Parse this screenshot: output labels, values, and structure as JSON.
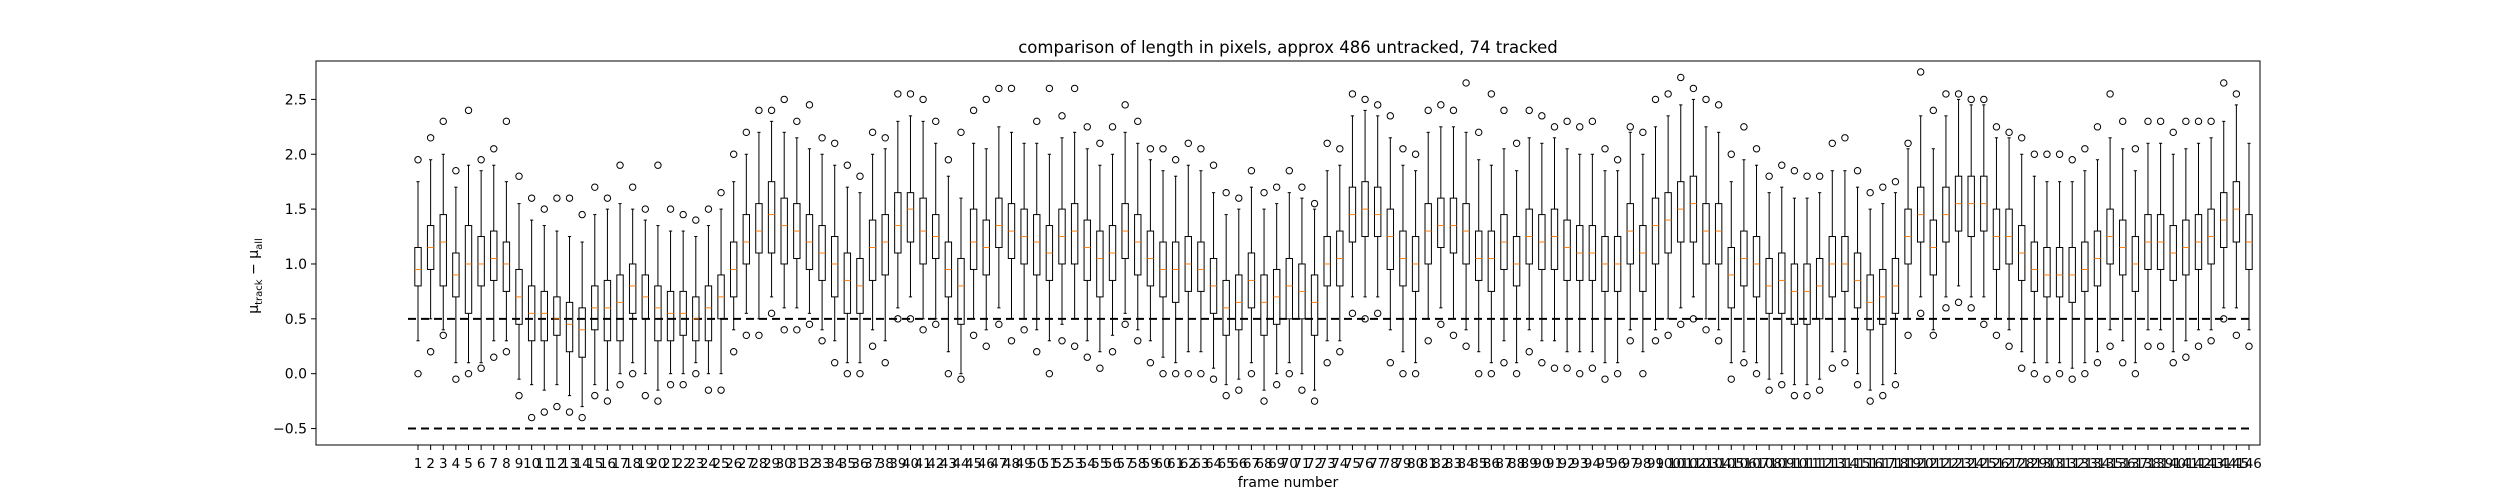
{
  "chart_data": {
    "type": "box",
    "title": "comparison of length in pixels, approx 486 untracked, 74 tracked",
    "xlabel": "frame number",
    "ylabel_main": "μ",
    "ylabel_sub1": "track",
    "ylabel_mid": " − μ",
    "ylabel_sub2": "all",
    "ylim": [
      -0.65,
      2.85
    ],
    "yticks": [
      -0.5,
      0.0,
      0.5,
      1.0,
      1.5,
      2.0,
      2.5
    ],
    "ytick_labels": [
      "−0.5",
      "0.0",
      "0.5",
      "1.0",
      "1.5",
      "2.0",
      "2.5"
    ],
    "reference_lines": [
      0.5,
      -0.5
    ],
    "box_color": "#000000",
    "median_color": "#ff7f0e",
    "frames_count": 146,
    "boxes_q1": [
      0.8,
      0.95,
      0.8,
      0.7,
      0.55,
      0.8,
      0.85,
      0.75,
      0.45,
      0.3,
      0.3,
      0.35,
      0.2,
      0.15,
      0.4,
      0.3,
      0.3,
      0.55,
      0.5,
      0.3,
      0.3,
      0.35,
      0.3,
      0.3,
      0.5,
      0.7,
      1.0,
      1.1,
      1.1,
      1.0,
      1.05,
      0.95,
      0.85,
      0.7,
      0.55,
      0.55,
      0.85,
      0.9,
      1.1,
      1.2,
      1.0,
      1.05,
      0.7,
      0.45,
      0.95,
      0.9,
      1.15,
      1.05,
      1.0,
      0.9,
      0.85,
      1.0,
      1.0,
      0.85,
      0.7,
      0.85,
      1.05,
      0.9,
      0.8,
      0.7,
      0.65,
      0.75,
      0.75,
      0.55,
      0.35,
      0.4,
      0.6,
      0.35,
      0.45,
      0.5,
      0.5,
      0.35,
      0.8,
      0.8,
      1.2,
      1.25,
      1.25,
      0.95,
      0.8,
      0.75,
      1.0,
      1.15,
      1.1,
      1.0,
      0.85,
      0.75,
      0.95,
      0.8,
      1.0,
      0.95,
      0.95,
      0.85,
      0.85,
      0.85,
      0.75,
      0.75,
      1.0,
      0.75,
      1.0,
      1.1,
      1.2,
      1.2,
      1.0,
      1.0,
      0.6,
      0.8,
      0.7,
      0.55,
      0.55,
      0.45,
      0.45,
      0.5,
      0.7,
      0.75,
      0.6,
      0.4,
      0.45,
      0.55,
      1.0,
      1.2,
      0.9,
      1.2,
      1.3,
      1.25,
      1.3,
      0.95,
      1.0,
      0.85,
      0.75,
      0.7,
      0.7,
      0.65,
      0.75,
      0.8,
      1.0,
      0.9,
      0.75,
      0.95,
      0.95,
      0.85,
      0.9,
      0.95,
      1.0,
      1.15,
      1.2,
      0.95
    ],
    "boxes_median": [
      0.95,
      1.15,
      1.2,
      0.9,
      1.0,
      1.0,
      1.05,
      1.0,
      0.7,
      0.55,
      0.55,
      0.5,
      0.45,
      0.4,
      0.6,
      0.6,
      0.65,
      0.8,
      0.7,
      0.6,
      0.55,
      0.55,
      0.5,
      0.6,
      0.7,
      0.95,
      1.2,
      1.3,
      1.45,
      1.35,
      1.3,
      1.2,
      1.1,
      1.0,
      0.85,
      0.8,
      1.15,
      1.2,
      1.35,
      1.5,
      1.3,
      1.25,
      0.95,
      0.8,
      1.2,
      1.15,
      1.35,
      1.3,
      1.25,
      1.2,
      1.1,
      1.25,
      1.3,
      1.15,
      1.05,
      1.1,
      1.3,
      1.2,
      1.05,
      0.95,
      0.95,
      1.0,
      0.95,
      0.8,
      0.6,
      0.65,
      0.85,
      0.65,
      0.7,
      0.8,
      0.75,
      0.65,
      1.0,
      1.05,
      1.45,
      1.5,
      1.45,
      1.25,
      1.05,
      1.0,
      1.3,
      1.35,
      1.35,
      1.3,
      1.05,
      1.05,
      1.2,
      1.0,
      1.25,
      1.2,
      1.25,
      1.15,
      1.1,
      1.1,
      1.0,
      1.0,
      1.3,
      1.1,
      1.35,
      1.4,
      1.5,
      1.55,
      1.3,
      1.3,
      0.9,
      1.05,
      1.0,
      0.8,
      0.85,
      0.75,
      0.75,
      0.8,
      1.0,
      1.0,
      0.85,
      0.65,
      0.7,
      0.8,
      1.25,
      1.45,
      1.15,
      1.45,
      1.55,
      1.55,
      1.55,
      1.25,
      1.25,
      1.1,
      0.95,
      0.9,
      0.9,
      0.9,
      0.95,
      1.05,
      1.25,
      1.15,
      1.0,
      1.2,
      1.2,
      1.1,
      1.15,
      1.2,
      1.25,
      1.4,
      1.5,
      1.2
    ],
    "boxes_q3": [
      1.15,
      1.35,
      1.45,
      1.1,
      1.35,
      1.25,
      1.3,
      1.2,
      0.95,
      0.8,
      0.75,
      0.7,
      0.65,
      0.6,
      0.8,
      0.85,
      0.9,
      1.0,
      0.9,
      0.8,
      0.75,
      0.75,
      0.7,
      0.8,
      0.9,
      1.2,
      1.45,
      1.55,
      1.75,
      1.6,
      1.55,
      1.45,
      1.35,
      1.25,
      1.1,
      1.05,
      1.4,
      1.45,
      1.65,
      1.65,
      1.6,
      1.45,
      1.2,
      1.05,
      1.5,
      1.4,
      1.6,
      1.55,
      1.5,
      1.45,
      1.35,
      1.5,
      1.55,
      1.4,
      1.3,
      1.35,
      1.55,
      1.45,
      1.3,
      1.2,
      1.2,
      1.25,
      1.2,
      1.05,
      0.85,
      0.9,
      1.1,
      0.9,
      0.95,
      1.05,
      1.0,
      0.9,
      1.25,
      1.3,
      1.7,
      1.75,
      1.7,
      1.5,
      1.3,
      1.25,
      1.55,
      1.6,
      1.6,
      1.55,
      1.3,
      1.3,
      1.45,
      1.25,
      1.5,
      1.45,
      1.5,
      1.4,
      1.35,
      1.35,
      1.25,
      1.25,
      1.55,
      1.35,
      1.6,
      1.65,
      1.75,
      1.8,
      1.55,
      1.55,
      1.15,
      1.3,
      1.25,
      1.05,
      1.1,
      1.0,
      1.0,
      1.05,
      1.25,
      1.25,
      1.1,
      0.9,
      0.95,
      1.05,
      1.5,
      1.7,
      1.4,
      1.7,
      1.8,
      1.8,
      1.8,
      1.5,
      1.5,
      1.35,
      1.2,
      1.15,
      1.15,
      1.15,
      1.2,
      1.3,
      1.5,
      1.4,
      1.25,
      1.45,
      1.45,
      1.35,
      1.4,
      1.45,
      1.5,
      1.65,
      1.75,
      1.45
    ],
    "boxes_whisker_low": [
      0.3,
      0.5,
      0.4,
      0.1,
      0.1,
      0.1,
      0.3,
      0.3,
      -0.05,
      -0.1,
      -0.15,
      -0.1,
      -0.2,
      -0.3,
      -0.1,
      -0.15,
      0.0,
      0.1,
      0.0,
      -0.15,
      0.0,
      0.0,
      0.1,
      0.0,
      0.0,
      0.4,
      0.55,
      0.5,
      0.7,
      0.6,
      0.6,
      0.55,
      0.4,
      0.3,
      0.1,
      0.1,
      0.4,
      0.3,
      0.6,
      0.7,
      0.5,
      0.5,
      0.2,
      0.0,
      0.5,
      0.4,
      0.6,
      0.5,
      0.5,
      0.4,
      0.3,
      0.45,
      0.5,
      0.3,
      0.2,
      0.35,
      0.55,
      0.4,
      0.3,
      0.15,
      0.1,
      0.2,
      0.2,
      0.05,
      -0.1,
      -0.05,
      0.1,
      -0.15,
      0.0,
      0.1,
      0.0,
      -0.15,
      0.3,
      0.3,
      0.7,
      0.7,
      0.7,
      0.4,
      0.2,
      0.1,
      0.5,
      0.6,
      0.5,
      0.4,
      0.2,
      0.1,
      0.3,
      0.1,
      0.4,
      0.3,
      0.3,
      0.2,
      0.2,
      0.2,
      0.1,
      0.1,
      0.4,
      0.2,
      0.4,
      0.5,
      0.6,
      0.7,
      0.5,
      0.4,
      0.1,
      0.2,
      0.1,
      -0.05,
      0.0,
      -0.1,
      -0.1,
      -0.05,
      0.2,
      0.2,
      0.0,
      -0.15,
      -0.1,
      0.0,
      0.5,
      0.7,
      0.4,
      0.7,
      0.8,
      0.7,
      0.7,
      0.5,
      0.4,
      0.2,
      0.1,
      0.1,
      0.1,
      0.05,
      0.1,
      0.2,
      0.4,
      0.3,
      0.1,
      0.4,
      0.4,
      0.2,
      0.3,
      0.4,
      0.4,
      0.6,
      0.6,
      0.4
    ],
    "boxes_whisker_high": [
      1.75,
      1.95,
      2.0,
      1.7,
      1.9,
      1.85,
      1.9,
      1.75,
      1.55,
      1.4,
      1.35,
      1.3,
      1.25,
      1.2,
      1.45,
      1.5,
      1.55,
      1.5,
      1.4,
      1.35,
      1.3,
      1.3,
      1.25,
      1.35,
      1.5,
      1.75,
      2.0,
      2.2,
      2.3,
      2.2,
      2.15,
      2.05,
      2.0,
      1.9,
      1.7,
      1.65,
      2.0,
      2.05,
      2.3,
      2.35,
      2.3,
      2.1,
      1.8,
      1.6,
      2.1,
      2.05,
      2.25,
      2.2,
      2.1,
      2.1,
      2.0,
      2.15,
      2.2,
      2.05,
      1.9,
      2.0,
      2.2,
      2.1,
      1.95,
      1.85,
      1.8,
      1.9,
      1.85,
      1.65,
      1.45,
      1.5,
      1.7,
      1.5,
      1.55,
      1.65,
      1.6,
      1.5,
      1.85,
      1.9,
      2.35,
      2.4,
      2.35,
      2.15,
      1.9,
      1.85,
      2.2,
      2.25,
      2.25,
      2.2,
      1.95,
      1.9,
      2.05,
      1.85,
      2.15,
      2.1,
      2.15,
      2.05,
      2.0,
      2.0,
      1.85,
      1.85,
      2.2,
      2.0,
      2.25,
      2.35,
      2.45,
      2.5,
      2.25,
      2.2,
      1.75,
      1.95,
      1.9,
      1.65,
      1.7,
      1.6,
      1.6,
      1.65,
      1.85,
      1.85,
      1.7,
      1.5,
      1.55,
      1.65,
      2.05,
      2.35,
      2.05,
      2.35,
      2.5,
      2.45,
      2.45,
      2.15,
      2.15,
      2.0,
      1.8,
      1.75,
      1.75,
      1.75,
      1.85,
      1.95,
      2.15,
      2.05,
      1.85,
      2.1,
      2.1,
      2.0,
      2.05,
      2.1,
      2.15,
      2.3,
      2.45,
      2.1
    ],
    "outliers_low": [
      0.0,
      0.2,
      0.35,
      -0.05,
      0.0,
      0.05,
      0.15,
      0.2,
      -0.2,
      -0.4,
      -0.35,
      -0.3,
      -0.35,
      -0.4,
      -0.2,
      -0.25,
      -0.1,
      0.0,
      -0.2,
      -0.25,
      -0.1,
      -0.1,
      0.0,
      -0.15,
      -0.15,
      0.2,
      0.35,
      0.35,
      0.55,
      0.4,
      0.4,
      0.45,
      0.3,
      0.1,
      0.0,
      0.0,
      0.25,
      0.1,
      0.5,
      0.5,
      0.4,
      0.45,
      0.0,
      -0.05,
      0.35,
      0.25,
      0.45,
      0.3,
      0.4,
      0.2,
      0.0,
      0.3,
      0.25,
      0.15,
      0.05,
      0.2,
      0.45,
      0.3,
      0.1,
      0.0,
      0.0,
      0.0,
      0.0,
      -0.05,
      -0.2,
      -0.15,
      0.0,
      -0.25,
      -0.1,
      0.0,
      -0.15,
      -0.25,
      0.1,
      0.2,
      0.55,
      0.5,
      0.55,
      0.1,
      0.0,
      0.0,
      0.3,
      0.45,
      0.35,
      0.25,
      0.0,
      0.0,
      0.1,
      0.0,
      0.2,
      0.1,
      0.05,
      0.05,
      0.0,
      0.05,
      -0.05,
      0.0,
      0.3,
      0.0,
      0.3,
      0.35,
      0.45,
      0.5,
      0.4,
      0.3,
      -0.05,
      0.1,
      0.0,
      -0.15,
      -0.1,
      -0.2,
      -0.2,
      -0.15,
      0.05,
      0.1,
      -0.1,
      -0.25,
      -0.2,
      -0.1,
      0.35,
      0.55,
      0.35,
      0.6,
      0.65,
      0.6,
      0.45,
      0.35,
      0.25,
      0.05,
      0.0,
      -0.05,
      0.0,
      -0.05,
      0.0,
      0.1,
      0.25,
      0.1,
      0.0,
      0.25,
      0.25,
      0.1,
      0.15,
      0.25,
      0.3,
      0.5,
      0.35,
      0.25
    ],
    "outliers_high": [
      1.95,
      2.15,
      2.3,
      1.85,
      2.4,
      1.95,
      2.05,
      2.3,
      1.8,
      1.6,
      1.5,
      1.6,
      1.6,
      1.45,
      1.7,
      1.6,
      1.9,
      1.7,
      1.5,
      1.9,
      1.5,
      1.45,
      1.4,
      1.5,
      1.65,
      2.0,
      2.2,
      2.4,
      2.4,
      2.5,
      2.3,
      2.45,
      2.15,
      2.1,
      1.9,
      1.8,
      2.2,
      2.15,
      2.55,
      2.55,
      2.5,
      2.3,
      1.95,
      2.2,
      2.4,
      2.5,
      2.6,
      2.6,
      2.0,
      2.3,
      2.6,
      2.35,
      2.6,
      2.25,
      2.1,
      2.25,
      2.45,
      2.3,
      2.05,
      2.05,
      1.95,
      2.1,
      2.05,
      1.9,
      1.65,
      1.6,
      1.85,
      1.65,
      1.7,
      1.85,
      1.7,
      1.55,
      2.1,
      2.05,
      2.55,
      2.5,
      2.45,
      2.35,
      2.05,
      2.0,
      2.4,
      2.45,
      2.4,
      2.65,
      2.2,
      2.55,
      2.4,
      2.1,
      2.4,
      2.35,
      2.25,
      2.3,
      2.25,
      2.3,
      2.05,
      1.95,
      2.25,
      2.2,
      2.5,
      2.55,
      2.7,
      2.6,
      2.5,
      2.45,
      2.0,
      2.25,
      2.05,
      1.8,
      1.9,
      1.85,
      1.8,
      1.8,
      2.1,
      2.15,
      1.85,
      1.65,
      1.7,
      1.75,
      2.1,
      2.75,
      2.4,
      2.55,
      2.55,
      2.5,
      2.5,
      2.25,
      2.2,
      2.15,
      2.0,
      2.0,
      2.0,
      1.95,
      2.05,
      2.25,
      2.55,
      2.3,
      2.05,
      2.3,
      2.3,
      2.2,
      2.3,
      2.3,
      2.3,
      2.65,
      2.55,
      2.1
    ]
  }
}
